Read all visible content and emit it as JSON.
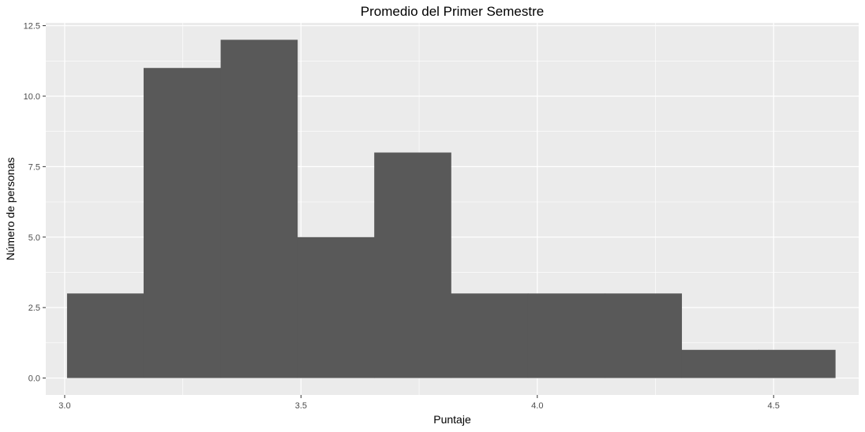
{
  "chart_data": {
    "type": "bar",
    "subtype": "histogram",
    "title": "Promedio del Primer Semestre",
    "xlabel": "Puntaje",
    "ylabel": "Número de personas",
    "xlim": [
      2.96,
      4.68
    ],
    "ylim": [
      -0.6,
      12.6
    ],
    "x_ticks": [
      3.0,
      3.5,
      4.0,
      4.5
    ],
    "x_tick_labels": [
      "3.0",
      "3.5",
      "4.0",
      "4.5"
    ],
    "y_ticks": [
      0,
      2.5,
      5,
      7.5,
      10,
      12.5
    ],
    "y_tick_labels": [
      "0.0",
      "2.5",
      "5.0",
      "7.5",
      "10.0",
      "12.5"
    ],
    "bins": [
      {
        "x0": 3.005,
        "x1": 3.167,
        "count": 3
      },
      {
        "x0": 3.167,
        "x1": 3.33,
        "count": 11
      },
      {
        "x0": 3.33,
        "x1": 3.492,
        "count": 12
      },
      {
        "x0": 3.492,
        "x1": 3.655,
        "count": 5
      },
      {
        "x0": 3.655,
        "x1": 3.817,
        "count": 8
      },
      {
        "x0": 3.817,
        "x1": 3.98,
        "count": 3
      },
      {
        "x0": 3.98,
        "x1": 4.143,
        "count": 3
      },
      {
        "x0": 4.143,
        "x1": 4.305,
        "count": 3
      },
      {
        "x0": 4.305,
        "x1": 4.468,
        "count": 1
      },
      {
        "x0": 4.468,
        "x1": 4.63,
        "count": 1
      }
    ],
    "grid": true,
    "legend": "none",
    "colors": {
      "panel_background": "#ebebeb",
      "grid_major": "#ffffff",
      "bar_fill": "#595959",
      "tick_text": "#4d4d4d",
      "tick_mark": "#333333"
    }
  }
}
